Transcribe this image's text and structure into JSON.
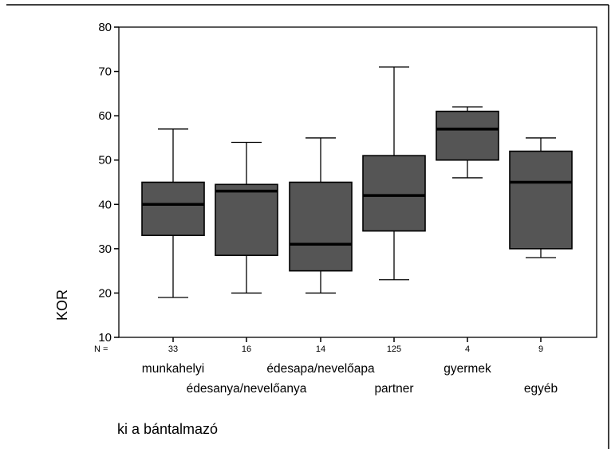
{
  "chart_data": {
    "type": "boxplot",
    "ylabel": "KOR",
    "xlabel": "ki a bántalmazó",
    "ylim": [
      10,
      80
    ],
    "yticks": [
      10,
      20,
      30,
      40,
      50,
      60,
      70,
      80
    ],
    "n_prefix": "N =",
    "grid": false,
    "categories": [
      "munkahelyi",
      "édesanya/nevelőanya",
      "édesapa/nevelőapa",
      "partner",
      "gyermek",
      "egyéb"
    ],
    "n": [
      "33",
      "16",
      "14",
      "125",
      "4",
      "9"
    ],
    "boxes": [
      {
        "min": 19,
        "q1": 33,
        "median": 40,
        "q3": 45,
        "max": 57
      },
      {
        "min": 20,
        "q1": 28.5,
        "median": 43,
        "q3": 44.5,
        "max": 54
      },
      {
        "min": 20,
        "q1": 25,
        "median": 31,
        "q3": 45,
        "max": 55
      },
      {
        "min": 23,
        "q1": 34,
        "median": 42,
        "q3": 51,
        "max": 71
      },
      {
        "min": 46,
        "q1": 50,
        "median": 57,
        "q3": 61,
        "max": 62
      },
      {
        "min": 28,
        "q1": 30,
        "median": 45,
        "q3": 52,
        "max": 55
      }
    ],
    "colors": {
      "box_fill": "#555555",
      "line": "#000000",
      "background": "#ffffff"
    }
  }
}
